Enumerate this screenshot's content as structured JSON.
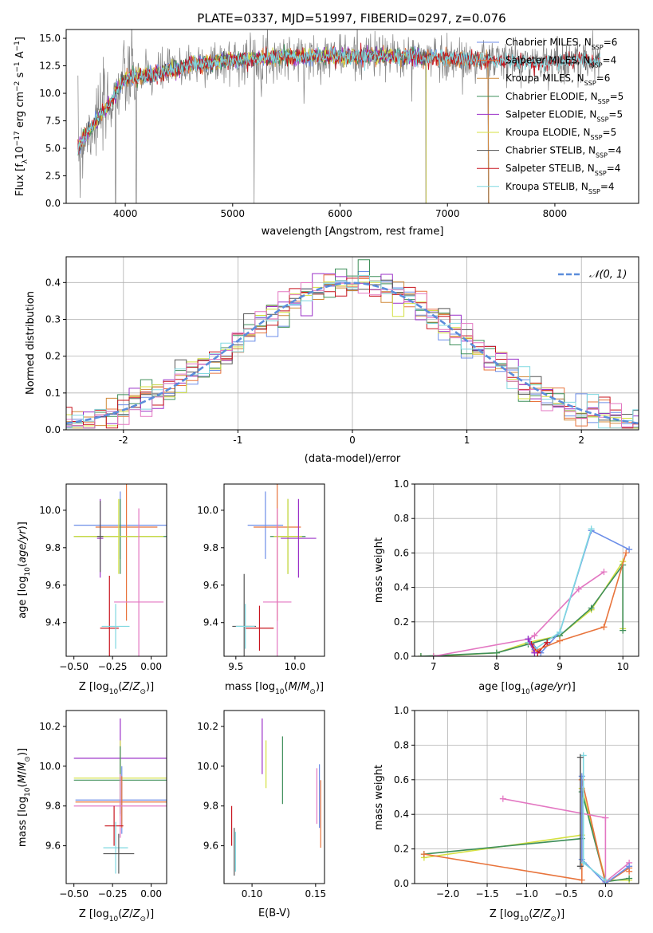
{
  "title": "PLATE=0337, MJD=51997, FIBERID=0297, z=0.076",
  "colors": {
    "Chabrier MILES": "#6c8ee8",
    "Salpeter MILES": "#e8743c",
    "Kroupa MILES": "#d08a3a",
    "Chabrier ELODIE": "#3f8f5a",
    "Salpeter ELODIE": "#9b30c8",
    "Kroupa ELODIE": "#d4e040",
    "Chabrier STELIB": "#555555",
    "Salpeter STELIB": "#c8141e",
    "Kroupa STELIB": "#7fd8e0",
    "pink": "#e377c2",
    "data": "#808080",
    "gaussian": "#5b8ddb"
  },
  "chart_data": [
    {
      "type": "line",
      "title": "PLATE=0337, MJD=51997, FIBERID=0297, z=0.076",
      "xlabel": "wavelength [Angstrom, rest frame]",
      "ylabel": "Flux [fλ10⁻¹⁷ erg cm⁻² s⁻¹ A⁻¹]",
      "xlim": [
        3450,
        8780
      ],
      "ylim": [
        0,
        15.8
      ],
      "xticks": [
        4000,
        5000,
        6000,
        7000,
        8000
      ],
      "yticks": [
        0.0,
        2.5,
        5.0,
        7.5,
        10.0,
        12.5,
        15.0
      ],
      "grid": false,
      "legend_position": "right",
      "legend": [
        {
          "label": "Chabrier MILES, N",
          "sub": "SSP",
          "eq": "=6"
        },
        {
          "label": "Salpeter MILES, N",
          "sub": "SSP",
          "eq": "=4"
        },
        {
          "label": "Kroupa MILES, N",
          "sub": "SSP",
          "eq": "=6"
        },
        {
          "label": "Chabrier ELODIE, N",
          "sub": "SSP",
          "eq": "=5"
        },
        {
          "label": "Salpeter ELODIE, N",
          "sub": "SSP",
          "eq": "=5"
        },
        {
          "label": "Kroupa ELODIE, N",
          "sub": "SSP",
          "eq": "=5"
        },
        {
          "label": "Chabrier STELIB, N",
          "sub": "SSP",
          "eq": "=4"
        },
        {
          "label": "Salpeter STELIB, N",
          "sub": "SSP",
          "eq": "=4"
        },
        {
          "label": "Kroupa STELIB, N",
          "sub": "SSP",
          "eq": "=4"
        }
      ],
      "data_envelope": {
        "x": [
          3560,
          3650,
          3750,
          3850,
          3950,
          4050,
          4150,
          4300,
          4450,
          4600,
          4800,
          5000,
          5200,
          5400,
          5600,
          5800,
          6000,
          6200,
          6400,
          6600,
          6800,
          7000,
          7200,
          7400,
          7600,
          7800,
          8000,
          8200,
          8400
        ],
        "y": [
          5.0,
          6.5,
          7.8,
          9.0,
          10.8,
          11.5,
          11.5,
          11.8,
          12.2,
          12.6,
          12.8,
          13.0,
          13.1,
          13.3,
          13.3,
          13.4,
          13.4,
          13.4,
          13.4,
          13.3,
          13.3,
          13.2,
          13.0,
          13.0,
          12.9,
          12.8,
          12.9,
          13.0,
          13.0
        ]
      },
      "data_dips": [
        {
          "x": 3580,
          "y": 0.5
        },
        {
          "x": 3910,
          "y": 0.0
        },
        {
          "x": 4101,
          "y": 0.0
        },
        {
          "x": 5200,
          "y": 0.0
        },
        {
          "x": 6800,
          "y": 0.0
        },
        {
          "x": 7380,
          "y": 0.0
        }
      ]
    },
    {
      "type": "step",
      "xlabel": "(data-model)/error",
      "ylabel": "Normed distribution",
      "xlim": [
        -2.5,
        2.5
      ],
      "ylim": [
        0,
        0.47
      ],
      "xticks": [
        -2,
        -1,
        0,
        1,
        2
      ],
      "yticks": [
        0.0,
        0.1,
        0.2,
        0.3,
        0.4
      ],
      "grid": true,
      "legend_label": "𝒩(0, 1)",
      "legend_position": "top-right",
      "bin_width": 0.1
    },
    {
      "type": "errorbar",
      "xlabel": "Z [log10(Z/Z⊙)]",
      "ylabel": "age  [log10(age/yr)]",
      "xlim": [
        -0.55,
        0.1
      ],
      "ylim": [
        9.22,
        10.14
      ],
      "xticks": [
        -0.5,
        -0.25,
        0.0
      ],
      "yticks": [
        9.4,
        9.6,
        9.8,
        10.0
      ],
      "points": [
        {
          "c": "Chabrier MILES",
          "x": -0.2,
          "y": 9.92,
          "xe": 0.3,
          "ye": 0.18
        },
        {
          "c": "Salpeter MILES",
          "x": -0.16,
          "y": 9.91,
          "xe": 0.2,
          "ye": 0.5
        },
        {
          "c": "Chabrier ELODIE",
          "x": -0.2,
          "y": 9.86,
          "xe": 0.3,
          "ye": 0.2
        },
        {
          "c": "Kroupa ELODIE",
          "x": -0.21,
          "y": 9.86,
          "xe": 0.29,
          "ye": 0.2
        },
        {
          "c": "Salpeter ELODIE",
          "x": -0.33,
          "y": 9.85,
          "xe": 0.02,
          "ye": 0.21
        },
        {
          "c": "Chabrier STELIB",
          "x": -0.33,
          "y": 9.86,
          "xe": 0.02,
          "ye": 0.19
        },
        {
          "c": "pink",
          "x": -0.08,
          "y": 9.51,
          "xe": 0.16,
          "ye": 0.5
        },
        {
          "c": "Salpeter STELIB",
          "x": -0.27,
          "y": 9.37,
          "xe": 0.06,
          "ye": 0.28
        },
        {
          "c": "Kroupa STELIB",
          "x": -0.23,
          "y": 9.38,
          "xe": 0.09,
          "ye": 0.12
        }
      ]
    },
    {
      "type": "errorbar",
      "xlabel": "mass [log10(M/M⊙)]",
      "ylabel": "",
      "xlim": [
        9.4,
        10.25
      ],
      "ylim": [
        9.22,
        10.14
      ],
      "xticks": [
        9.5,
        10.0
      ],
      "yticks": [
        9.4,
        9.6,
        9.8,
        10.0
      ],
      "points": [
        {
          "c": "Chabrier MILES",
          "x": 9.75,
          "y": 9.92,
          "xe": 0.15,
          "ye": 0.18
        },
        {
          "c": "Salpeter MILES",
          "x": 9.85,
          "y": 9.91,
          "xe": 0.2,
          "ye": 0.5
        },
        {
          "c": "Chabrier ELODIE",
          "x": 9.94,
          "y": 9.86,
          "xe": 0.15,
          "ye": 0.2
        },
        {
          "c": "Kroupa ELODIE",
          "x": 9.94,
          "y": 9.86,
          "xe": 0.12,
          "ye": 0.2
        },
        {
          "c": "Salpeter ELODIE",
          "x": 10.03,
          "y": 9.85,
          "xe": 0.15,
          "ye": 0.21
        },
        {
          "c": "Chabrier STELIB",
          "x": 9.57,
          "y": 9.38,
          "xe": 0.1,
          "ye": 0.28
        },
        {
          "c": "pink",
          "x": 9.85,
          "y": 9.51,
          "xe": 0.12,
          "ye": 0.5
        },
        {
          "c": "Salpeter STELIB",
          "x": 9.7,
          "y": 9.37,
          "xe": 0.12,
          "ye": 0.12
        },
        {
          "c": "Kroupa STELIB",
          "x": 9.58,
          "y": 9.38,
          "xe": 0.08,
          "ye": 0.12
        }
      ]
    },
    {
      "type": "line",
      "xlabel": "age  [log10(age/yr)]",
      "ylabel": "mass weight",
      "xlim": [
        6.7,
        10.25
      ],
      "ylim": [
        0,
        1.0
      ],
      "xticks": [
        7,
        8,
        9,
        10
      ],
      "yticks": [
        0.0,
        0.2,
        0.4,
        0.6,
        0.8,
        1.0
      ],
      "grid": true,
      "series": [
        {
          "c": "Kroupa ELODIE",
          "x": [
            6.8,
            7.0,
            8.0,
            8.5,
            9.0,
            9.5,
            10.0,
            10.0
          ],
          "y": [
            0.0,
            0.0,
            0.02,
            0.08,
            0.12,
            0.27,
            0.55,
            0.16
          ]
        },
        {
          "c": "Chabrier ELODIE",
          "x": [
            6.8,
            8.0,
            8.5,
            9.0,
            9.5,
            10.0,
            10.0
          ],
          "y": [
            0.0,
            0.02,
            0.07,
            0.12,
            0.28,
            0.53,
            0.15
          ]
        },
        {
          "c": "pink",
          "x": [
            7.0,
            8.5,
            8.6,
            9.3,
            9.7
          ],
          "y": [
            0.0,
            0.1,
            0.12,
            0.39,
            0.49
          ]
        },
        {
          "c": "Chabrier MILES",
          "x": [
            8.5,
            8.7,
            9.0,
            9.5,
            10.1
          ],
          "y": [
            0.1,
            0.02,
            0.14,
            0.73,
            0.62
          ]
        },
        {
          "c": "Kroupa STELIB",
          "x": [
            8.5,
            8.6,
            9.0,
            9.5
          ],
          "y": [
            0.08,
            0.04,
            0.14,
            0.74
          ]
        },
        {
          "c": "Salpeter STELIB",
          "x": [
            8.55,
            8.65,
            8.8
          ],
          "y": [
            0.07,
            0.02,
            0.08
          ]
        },
        {
          "c": "Salpeter MILES",
          "x": [
            8.6,
            9.0,
            9.7,
            10.05
          ],
          "y": [
            0.03,
            0.09,
            0.17,
            0.6
          ]
        },
        {
          "c": "Salpeter ELODIE",
          "x": [
            8.5,
            8.6
          ],
          "y": [
            0.1,
            0.02
          ]
        }
      ]
    },
    {
      "type": "errorbar",
      "xlabel": "Z [log10(Z/Z⊙)]",
      "ylabel": "mass [log10(M/M⊙)]",
      "xlim": [
        -0.55,
        0.1
      ],
      "ylim": [
        9.41,
        10.28
      ],
      "xticks": [
        -0.5,
        -0.25,
        0.0
      ],
      "yticks": [
        9.6,
        9.8,
        10.0,
        10.2
      ],
      "points": [
        {
          "c": "Salpeter ELODIE",
          "x": -0.2,
          "y": 10.04,
          "xe": 0.3,
          "ye": 0.2
        },
        {
          "c": "Kroupa ELODIE",
          "x": -0.2,
          "y": 9.94,
          "xe": 0.3,
          "ye": 0.19
        },
        {
          "c": "Chabrier ELODIE",
          "x": -0.2,
          "y": 9.93,
          "xe": 0.3,
          "ye": 0.17
        },
        {
          "c": "Chabrier MILES",
          "x": -0.19,
          "y": 9.83,
          "xe": 0.3,
          "ye": 0.17
        },
        {
          "c": "Salpeter MILES",
          "x": -0.19,
          "y": 9.82,
          "xe": 0.3,
          "ye": 0.13
        },
        {
          "c": "pink",
          "x": -0.2,
          "y": 9.8,
          "xe": 0.3,
          "ye": 0.16
        },
        {
          "c": "Salpeter STELIB",
          "x": -0.24,
          "y": 9.7,
          "xe": 0.06,
          "ye": 0.1
        },
        {
          "c": "Kroupa STELIB",
          "x": -0.23,
          "y": 9.59,
          "xe": 0.08,
          "ye": 0.13
        },
        {
          "c": "Chabrier STELIB",
          "x": -0.21,
          "y": 9.56,
          "xe": 0.1,
          "ye": 0.1
        }
      ]
    },
    {
      "type": "errorbar",
      "xlabel": "E(B-V)",
      "ylabel": "",
      "xlim": [
        0.078,
        0.157
      ],
      "ylim": [
        9.41,
        10.28
      ],
      "xticks": [
        0.1,
        0.15
      ],
      "yticks": [
        9.6,
        9.8,
        10.0,
        10.2
      ],
      "points": [
        {
          "c": "Salpeter STELIB",
          "x": 0.084,
          "y": 9.7,
          "xe": 0,
          "ye": 0.1
        },
        {
          "c": "Chabrier STELIB",
          "x": 0.086,
          "y": 9.57,
          "xe": 0,
          "ye": 0.12
        },
        {
          "c": "Kroupa STELIB",
          "x": 0.087,
          "y": 9.57,
          "xe": 0,
          "ye": 0.1
        },
        {
          "c": "Salpeter ELODIE",
          "x": 0.108,
          "y": 10.1,
          "xe": 0,
          "ye": 0.14
        },
        {
          "c": "Kroupa ELODIE",
          "x": 0.111,
          "y": 10.01,
          "xe": 0,
          "ye": 0.12
        },
        {
          "c": "Chabrier ELODIE",
          "x": 0.124,
          "y": 9.98,
          "xe": 0,
          "ye": 0.17
        },
        {
          "c": "pink",
          "x": 0.151,
          "y": 9.85,
          "xe": 0,
          "ye": 0.14
        },
        {
          "c": "Chabrier MILES",
          "x": 0.153,
          "y": 9.85,
          "xe": 0,
          "ye": 0.16
        },
        {
          "c": "Salpeter MILES",
          "x": 0.154,
          "y": 9.76,
          "xe": 0,
          "ye": 0.17
        }
      ]
    },
    {
      "type": "line",
      "xlabel": "Z [log10(Z/Z⊙)]",
      "ylabel": "mass weight",
      "xlim": [
        -2.42,
        0.42
      ],
      "ylim": [
        0,
        1.0
      ],
      "xticks": [
        -2.0,
        -1.5,
        -1.0,
        -0.5,
        0.0
      ],
      "yticks": [
        0.0,
        0.2,
        0.4,
        0.6,
        0.8,
        1.0
      ],
      "grid": true,
      "series": [
        {
          "c": "Kroupa ELODIE",
          "x": [
            -2.3,
            -0.3,
            -0.3,
            0.0,
            0.3
          ],
          "y": [
            0.15,
            0.28,
            0.55,
            0.02,
            0.02
          ]
        },
        {
          "c": "Chabrier ELODIE",
          "x": [
            -2.3,
            -0.3,
            -0.3,
            0.0,
            0.3
          ],
          "y": [
            0.17,
            0.26,
            0.53,
            0.01,
            0.03
          ]
        },
        {
          "c": "Salpeter MILES",
          "x": [
            -2.3,
            -0.3,
            -0.3,
            0.0,
            0.3,
            0.3
          ],
          "y": [
            0.17,
            0.02,
            0.6,
            0.0,
            0.09,
            0.07
          ]
        },
        {
          "c": "pink",
          "x": [
            -1.3,
            0.0,
            0.0,
            0.3
          ],
          "y": [
            0.49,
            0.38,
            0.01,
            0.12
          ]
        },
        {
          "c": "Chabrier MILES",
          "x": [
            -0.3,
            -0.3,
            0.0,
            0.3
          ],
          "y": [
            0.62,
            0.14,
            0.0,
            0.1
          ]
        },
        {
          "c": "Kroupa STELIB",
          "x": [
            -0.28,
            -0.28,
            0.0
          ],
          "y": [
            0.74,
            0.12,
            0.02
          ]
        },
        {
          "c": "Chabrier STELIB",
          "x": [
            -0.32,
            -0.32
          ],
          "y": [
            0.73,
            0.1
          ]
        }
      ]
    }
  ]
}
